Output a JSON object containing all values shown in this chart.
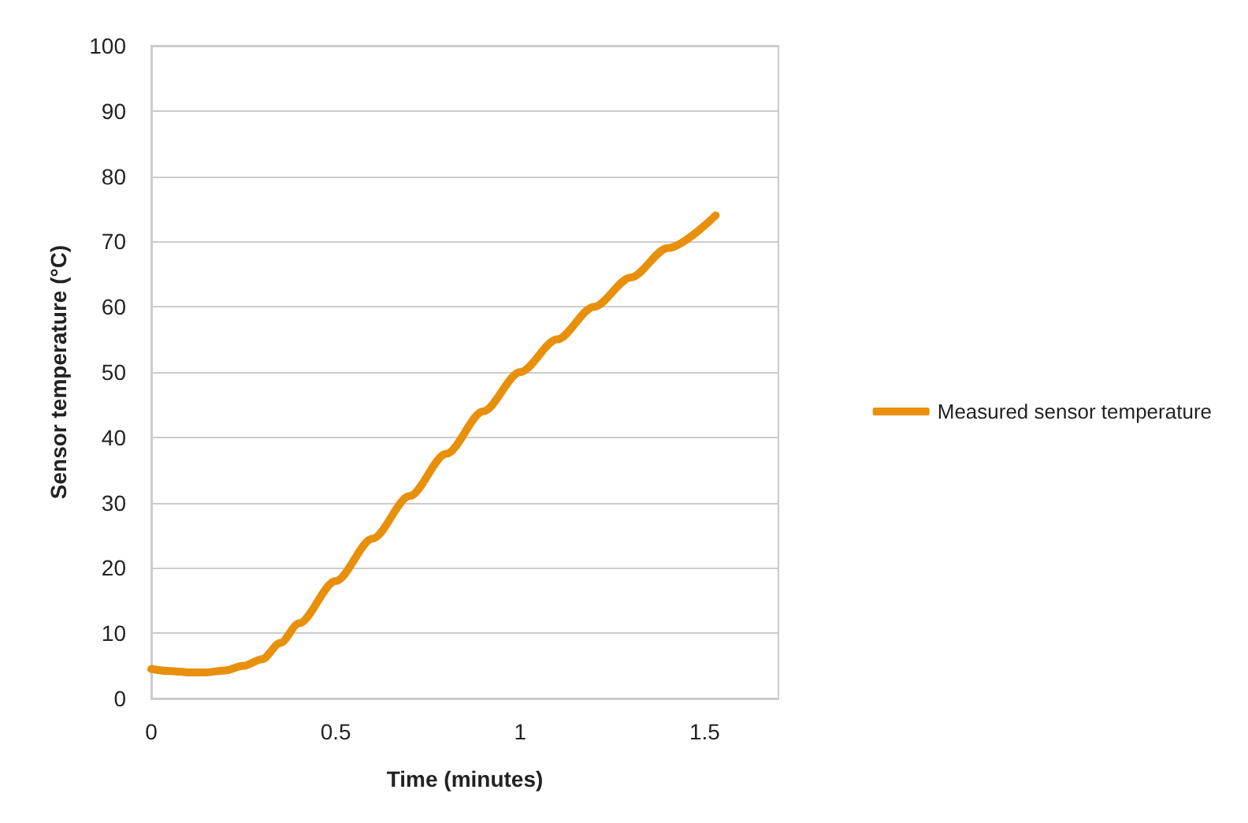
{
  "chart_data": {
    "type": "line",
    "xlabel": "Time (minutes)",
    "ylabel": "Sensor temperature (°C)",
    "xlim": [
      0,
      1.7
    ],
    "xticks": [
      0,
      0.5,
      1,
      1.5
    ],
    "ylim": [
      0,
      100
    ],
    "yticks": [
      0,
      10,
      20,
      30,
      40,
      50,
      60,
      70,
      80,
      90,
      100
    ],
    "grid": "y",
    "legend": "right",
    "marker": "none",
    "line_style": "solid",
    "series": [
      {
        "name": "Measured sensor temperature",
        "color": "#e8900c",
        "x": [
          0,
          0.05,
          0.1,
          0.15,
          0.2,
          0.25,
          0.3,
          0.35,
          0.4,
          0.5,
          0.6,
          0.7,
          0.8,
          0.9,
          1.0,
          1.1,
          1.2,
          1.3,
          1.4,
          1.53
        ],
        "values": [
          4.5,
          4.2,
          4.0,
          4.0,
          4.3,
          5.0,
          6.0,
          8.5,
          11.5,
          18,
          24.5,
          31,
          37.5,
          44,
          50,
          55,
          60,
          64.5,
          69,
          74
        ]
      }
    ]
  }
}
